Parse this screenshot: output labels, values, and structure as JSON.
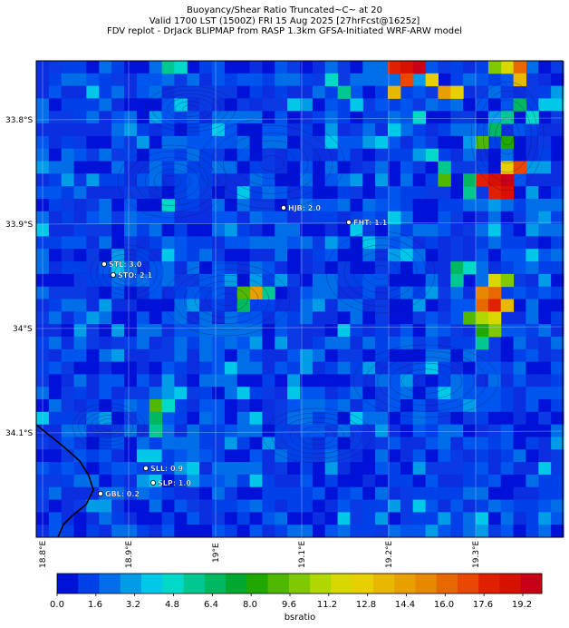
{
  "title": {
    "line1": "Buoyancy/Shear Ratio Truncated~C~    at 20",
    "line2": "Valid 1700 LST (1500Z) FRI 15 Aug 2025 [27hrFcst@1625z]",
    "line3": "FDV replot - DrJack BLIPMAP from RASP 1.3km GFSA-Initiated WRF-ARW model"
  },
  "lat_labels": [
    "33.8°S",
    "33.9°S",
    "34°S",
    "34.1°S"
  ],
  "lon_labels": [
    "18.8°E",
    "18.9°E",
    "19°E",
    "19.1°E",
    "19.2°E",
    "19.3°E"
  ],
  "stations": [
    {
      "label": "HJB: 2.0"
    },
    {
      "label": "FHT: 1.1"
    },
    {
      "label": "STL: 3.0"
    },
    {
      "label": "STO: 2.1"
    },
    {
      "label": "SLL: 0.9"
    },
    {
      "label": "SLP: 1.0"
    },
    {
      "label": "GBL: 0.2"
    }
  ],
  "colorbar": {
    "label": "bsratio",
    "ticks": [
      "0.0",
      "1.6",
      "3.2",
      "4.8",
      "6.4",
      "8.0",
      "9.6",
      "11.2",
      "12.8",
      "14.4",
      "16.0",
      "17.6",
      "19.2"
    ],
    "colors": [
      "#0012d8",
      "#0040e8",
      "#006ee8",
      "#009ce8",
      "#00c8e8",
      "#00d8c8",
      "#00c890",
      "#00b860",
      "#00a830",
      "#20a800",
      "#50b800",
      "#80c800",
      "#b0d800",
      "#d8d800",
      "#e8d000",
      "#e8b800",
      "#e8a000",
      "#e88800",
      "#e86800",
      "#e84800",
      "#e02000",
      "#d81000",
      "#c80018"
    ]
  }
}
